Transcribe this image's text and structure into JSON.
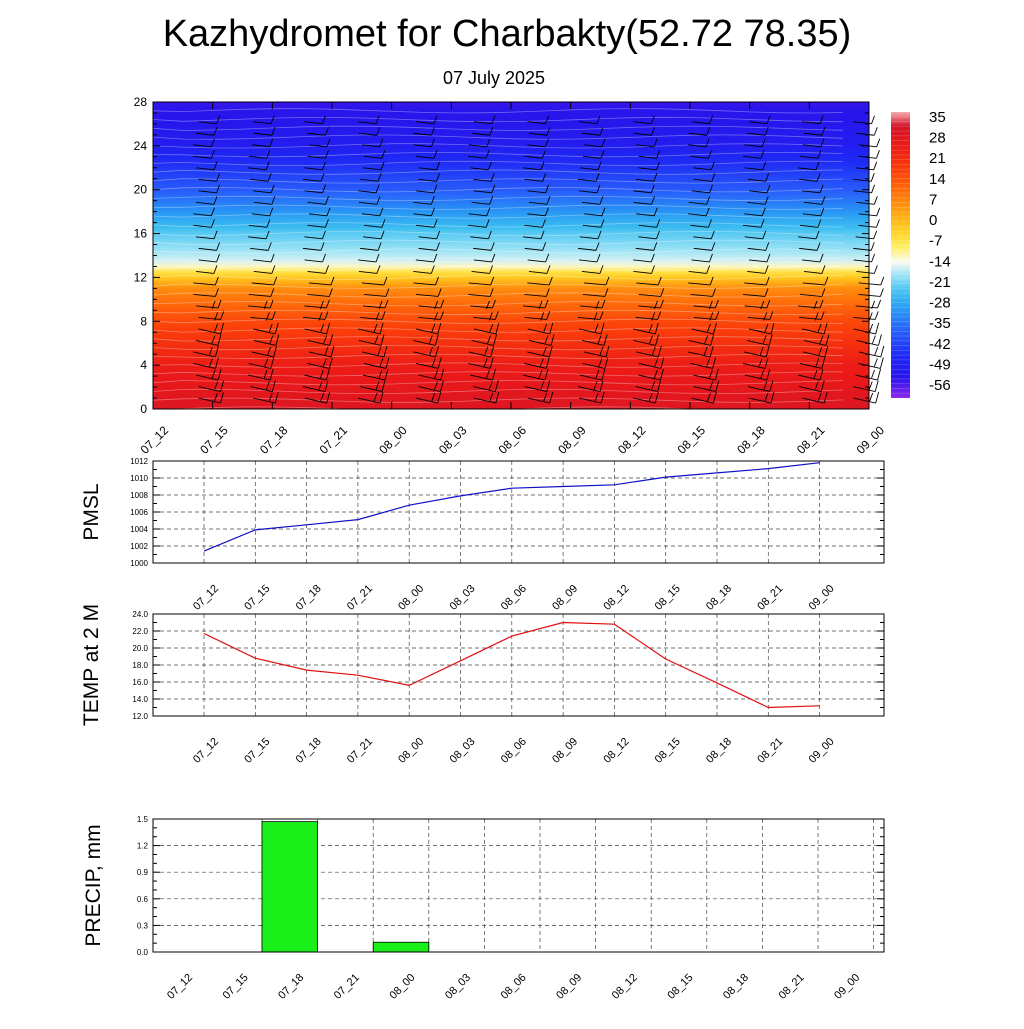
{
  "title": "Kazhydromet for Charbakty(52.72 78.35)",
  "subtitle": "07 July 2025",
  "colors": {
    "pmsl_line": "#1010c8",
    "temp_line": "#e01010",
    "precip_bar": "#19f019",
    "grid": "#555555"
  },
  "chart_data": [
    {
      "type": "heatmap",
      "name": "upper-air cross-section",
      "x_ticks": [
        "07_12",
        "07_15",
        "07_18",
        "07_21",
        "08_00",
        "08_03",
        "08_06",
        "08_09",
        "08_12",
        "08_15",
        "08_18",
        "08_21",
        "09_00"
      ],
      "y_ticks": [
        "0",
        "4",
        "8",
        "12",
        "16",
        "20",
        "24",
        "28"
      ],
      "ylim": [
        0,
        28
      ],
      "colorbar_labels": [
        "35",
        "28",
        "21",
        "14",
        "7",
        "0",
        "-7",
        "-14",
        "-21",
        "-28",
        "-35",
        "-42",
        "-49",
        "-56"
      ],
      "colorbar_range": [
        -63,
        38
      ],
      "profile_description": "warm (red, ~30) near surface cooling through orange/yellow to ~0 at level 12-13, then light blue to blue (~-56) aloft",
      "profile": [
        [
          0,
          30
        ],
        [
          4,
          25
        ],
        [
          8,
          16
        ],
        [
          11,
          6
        ],
        [
          12.6,
          -8
        ],
        [
          13.2,
          -16
        ],
        [
          16,
          -24
        ],
        [
          18,
          -32
        ],
        [
          20,
          -40
        ],
        [
          22,
          -46
        ],
        [
          24,
          -52
        ],
        [
          28,
          -57
        ]
      ],
      "wind_barbs": true
    },
    {
      "type": "line",
      "ylabel": "PMSL",
      "x": [
        "07_12",
        "07_15",
        "07_18",
        "07_21",
        "08_00",
        "08_03",
        "08_06",
        "08_09",
        "08_12",
        "08_15",
        "08_18",
        "08_21",
        "09_00"
      ],
      "values": [
        1001.4,
        1003.9,
        1004.5,
        1005.1,
        1006.8,
        1007.9,
        1008.8,
        1009.0,
        1009.2,
        1010.1,
        1010.6,
        1011.1,
        1011.8
      ],
      "ylim": [
        1000,
        1012
      ],
      "y_ticks": [
        "1000",
        "1002",
        "1004",
        "1006",
        "1008",
        "1010",
        "1012"
      ],
      "grid": true
    },
    {
      "type": "line",
      "ylabel": "TEMP at 2 M",
      "x": [
        "07_12",
        "07_15",
        "07_18",
        "07_21",
        "08_00",
        "08_03",
        "08_06",
        "08_09",
        "08_12",
        "08_15",
        "08_18",
        "08_21",
        "09_00"
      ],
      "values": [
        21.7,
        18.8,
        17.4,
        16.8,
        15.6,
        18.5,
        21.4,
        23.0,
        22.8,
        18.7,
        15.9,
        13.0,
        13.2
      ],
      "ylim": [
        12,
        24
      ],
      "y_ticks": [
        "12.0",
        "14.0",
        "16.0",
        "18.0",
        "20.0",
        "22.0",
        "24.0"
      ],
      "grid": true
    },
    {
      "type": "bar",
      "ylabel": "PRECIP, mm",
      "x": [
        "07_12",
        "07_15",
        "07_18",
        "07_21",
        "08_00",
        "08_03",
        "08_06",
        "08_09",
        "08_12",
        "08_15",
        "08_18",
        "08_21",
        "09_00"
      ],
      "values": [
        0,
        1.47,
        0,
        0.11,
        0,
        0,
        0,
        0,
        0,
        0,
        0,
        0,
        0
      ],
      "ylim": [
        0,
        1.5
      ],
      "y_ticks": [
        "0.0",
        "0.3",
        "0.6",
        "0.9",
        "1.2",
        "1.5"
      ],
      "grid": true
    }
  ]
}
